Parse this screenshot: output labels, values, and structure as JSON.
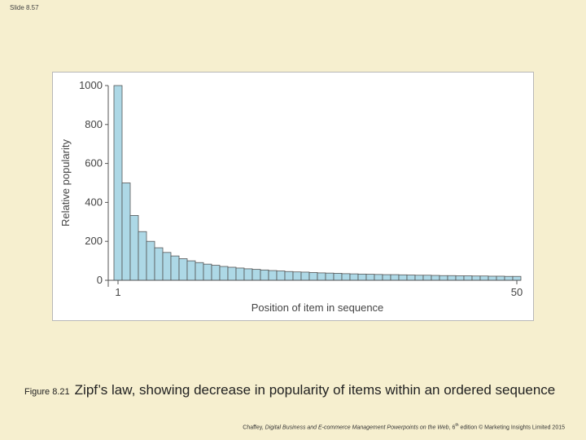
{
  "slide": {
    "number": "Slide 8.57"
  },
  "caption": {
    "figure_label": "Figure 8.21",
    "text": "Zipf’s law, showing decrease in popularity of items within an ordered sequence"
  },
  "footer": {
    "authors": "Chaffey, ",
    "book": "Digital Business and E-commerce Management Powerpoints on the Web",
    "edition": ", 6",
    "edition_sup": "th",
    "rest": " edition © Marketing Insights Limited 2015"
  },
  "colors": {
    "bar": "#add8e6",
    "background": "#f6efcf"
  },
  "chart_data": {
    "type": "bar",
    "xlabel": "Position of item in sequence",
    "ylabel": "Relative popularity",
    "ylim": [
      0,
      1000
    ],
    "yticks": [
      0,
      200,
      400,
      600,
      800,
      1000
    ],
    "xtick_labels": [
      {
        "position": 1,
        "label": "1"
      },
      {
        "position": 50,
        "label": "50"
      }
    ],
    "x": [
      1,
      2,
      3,
      4,
      5,
      6,
      7,
      8,
      9,
      10,
      11,
      12,
      13,
      14,
      15,
      16,
      17,
      18,
      19,
      20,
      21,
      22,
      23,
      24,
      25,
      26,
      27,
      28,
      29,
      30,
      31,
      32,
      33,
      34,
      35,
      36,
      37,
      38,
      39,
      40,
      41,
      42,
      43,
      44,
      45,
      46,
      47,
      48,
      49,
      50
    ],
    "values": [
      1000,
      500,
      333,
      250,
      200,
      167,
      143,
      125,
      111,
      100,
      91,
      83,
      77,
      71,
      67,
      63,
      59,
      56,
      53,
      50,
      48,
      45,
      43,
      42,
      40,
      38,
      37,
      36,
      34,
      33,
      32,
      31,
      30,
      29,
      29,
      28,
      27,
      26,
      26,
      25,
      24,
      24,
      23,
      23,
      22,
      22,
      21,
      21,
      20,
      20
    ],
    "grid": false,
    "legend": "none"
  }
}
